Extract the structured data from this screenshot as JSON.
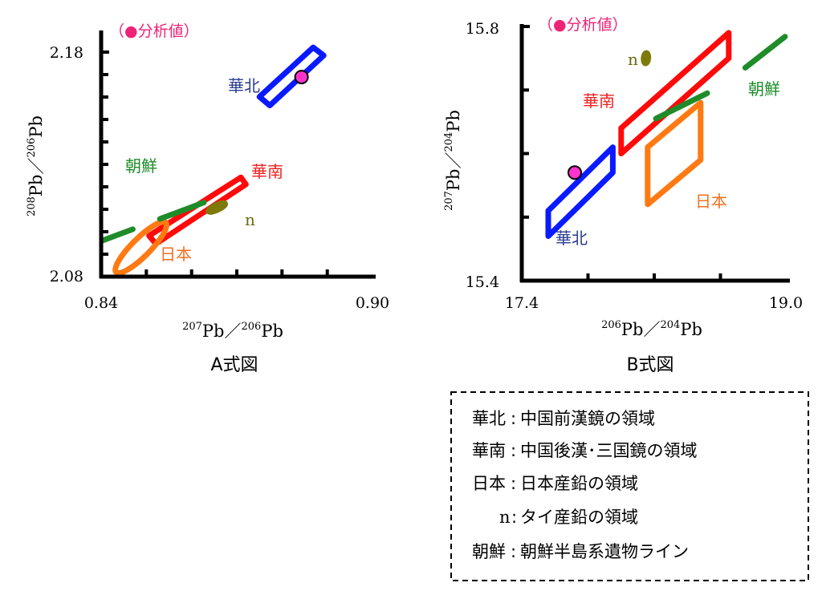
{
  "chart_data": [
    {
      "type": "scatter",
      "title": "A式図",
      "xlabel": {
        "sup1": "207",
        "base1": "Pb",
        "sep": "／",
        "sup2": "206",
        "base2": "Pb"
      },
      "ylabel": {
        "sup1": "208",
        "base1": "Pb",
        "sep": "／",
        "sup2": "206",
        "base2": "Pb"
      },
      "xlim": [
        0.84,
        0.9
      ],
      "ylim": [
        2.08,
        2.18
      ],
      "x_tick_labels": [
        "0.84",
        "0.90"
      ],
      "y_tick_labels": [
        "2.08",
        "2.18"
      ],
      "legend_note": "（●分析値）",
      "regions": [
        {
          "label": "華北",
          "color": "#0a1aff",
          "shape": "rect",
          "corners": [
            [
              0.8773,
              2.1562
            ],
            [
              0.8892,
              2.1785
            ],
            [
              0.8869,
              2.1821
            ],
            [
              0.875,
              2.1601
            ]
          ]
        },
        {
          "label": "華南",
          "color": "#ff0a0a",
          "shape": "rect",
          "corners": [
            [
              0.8521,
              2.0946
            ],
            [
              0.872,
              2.1211
            ],
            [
              0.8709,
              2.1242
            ],
            [
              0.8506,
              2.0982
            ]
          ]
        },
        {
          "label": "日本",
          "color": "#ff7a12",
          "shape": "ellipse",
          "center": [
            0.8488,
            2.093
          ],
          "length": 0.0155,
          "width": 0.004,
          "angle_deg": -45
        },
        {
          "label": "n",
          "color": "#7d7a0a",
          "shape": "ellipse",
          "center": [
            0.8656,
            2.1108
          ],
          "length": 0.004,
          "width": 0.0011,
          "angle_deg": -25
        }
      ],
      "lines": [
        {
          "label": "朝鮮",
          "color": "#1f8c2a",
          "segments": [
            [
              [
                0.8402,
                2.096
              ],
              [
                0.847,
                2.1011
              ]
            ],
            [
              [
                0.853,
                2.1057
              ],
              [
                0.8627,
                2.113
              ]
            ]
          ]
        }
      ],
      "points": [
        {
          "label": "分析値",
          "color": "#ff33cc",
          "x": 0.8843,
          "y": 2.1689
        }
      ]
    },
    {
      "type": "scatter",
      "title": "B式図",
      "xlabel": {
        "sup1": "206",
        "base1": "Pb",
        "sep": "／",
        "sup2": "204",
        "base2": "Pb"
      },
      "ylabel": {
        "sup1": "207",
        "base1": "Pb",
        "sep": "／",
        "sup2": "204",
        "base2": "Pb"
      },
      "xlim": [
        17.4,
        19.0
      ],
      "ylim": [
        15.4,
        15.8
      ],
      "x_tick_labels": [
        "17.4",
        "19.0"
      ],
      "y_tick_labels": [
        "15.4",
        "15.8"
      ],
      "legend_note": "（●分析値）",
      "regions": [
        {
          "label": "華北",
          "color": "#0a1aff",
          "shape": "rect",
          "corners": [
            [
              17.56,
              15.47
            ],
            [
              17.95,
              15.57
            ],
            [
              17.95,
              15.61
            ],
            [
              17.56,
              15.51
            ]
          ]
        },
        {
          "label": "華南",
          "color": "#ff0a0a",
          "shape": "rect",
          "corners": [
            [
              18.0,
              15.6
            ],
            [
              18.65,
              15.75
            ],
            [
              18.65,
              15.79
            ],
            [
              18.0,
              15.64
            ]
          ]
        },
        {
          "label": "日本",
          "color": "#ff7a12",
          "shape": "rect",
          "corners": [
            [
              18.16,
              15.52
            ],
            [
              18.48,
              15.59
            ],
            [
              18.48,
              15.68
            ],
            [
              18.16,
              15.61
            ]
          ]
        },
        {
          "label": "n",
          "color": "#7d7a0a",
          "shape": "ellipse",
          "center": [
            18.15,
            15.75
          ],
          "length": 0.063,
          "width": 0.028,
          "angle_deg": -85
        }
      ],
      "lines": [
        {
          "label": "朝鮮",
          "color": "#1f8c2a",
          "segments": [
            [
              [
                18.21,
                15.655
              ],
              [
                18.52,
                15.695
              ]
            ],
            [
              [
                18.75,
                15.735
              ],
              [
                18.99,
                15.784
              ]
            ]
          ]
        }
      ],
      "points": [
        {
          "label": "分析値",
          "color": "#ff33cc",
          "x": 17.72,
          "y": 15.57
        }
      ]
    }
  ],
  "legend_box": {
    "rows": [
      {
        "key": "華北",
        "colon": ":",
        "desc": "中国前漢鏡の領域"
      },
      {
        "key": "華南",
        "colon": ":",
        "desc": "中国後漢･三国鏡の領域"
      },
      {
        "key": "日本",
        "colon": ":",
        "desc": "日本産鉛の領域"
      },
      {
        "key": "n",
        "colon": ":",
        "desc": "タイ産鉛の領域"
      },
      {
        "key": "朝鮮",
        "colon": ":",
        "desc": "朝鮮半島系遺物ライン"
      }
    ]
  }
}
